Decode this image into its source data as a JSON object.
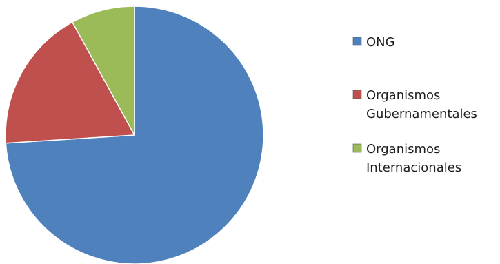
{
  "chart_data": {
    "type": "pie",
    "title": "",
    "legend_position": "right",
    "slices": [
      {
        "label": "ONG",
        "label_lines": [
          "ONG"
        ],
        "value": 74,
        "color": "#4f81bd"
      },
      {
        "label": "Organismos Gubernamentales",
        "label_lines": [
          "Organismos",
          "Gubernamentales"
        ],
        "value": 18,
        "color": "#c0504d"
      },
      {
        "label": "Organismos Internacionales",
        "label_lines": [
          "Organismos",
          "Internacionales"
        ],
        "value": 8,
        "color": "#9bbb59"
      }
    ]
  }
}
